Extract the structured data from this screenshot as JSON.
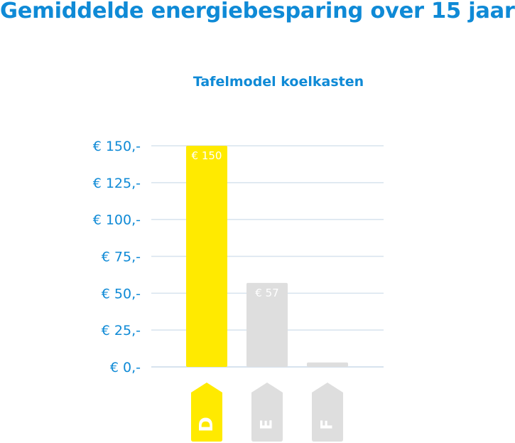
{
  "title": "Gemiddelde energiebesparing over 15 jaar",
  "colors": {
    "accent": "#0f8ad6",
    "bar_highlight": "#ffea00",
    "bar_muted": "#dedede",
    "grid": "#d7e3ee",
    "label_light": "#ffffff"
  },
  "chart_data": {
    "type": "bar",
    "title": "Tafelmodel koelkasten",
    "categories": [
      "D",
      "E",
      "F"
    ],
    "values": [
      150,
      57,
      3
    ],
    "data_labels": [
      "€ 150",
      "€ 57",
      ""
    ],
    "highlight": "D",
    "ylim": [
      0,
      150
    ],
    "yticks": [
      0,
      25,
      50,
      75,
      100,
      125,
      150
    ],
    "ytick_labels": [
      "€ 0,-",
      "€ 25,-",
      "€ 50,-",
      "€ 75,-",
      "€ 100,-",
      "€ 125,-",
      "€ 150,-"
    ],
    "xlabel": "",
    "ylabel": "",
    "grid": true
  }
}
